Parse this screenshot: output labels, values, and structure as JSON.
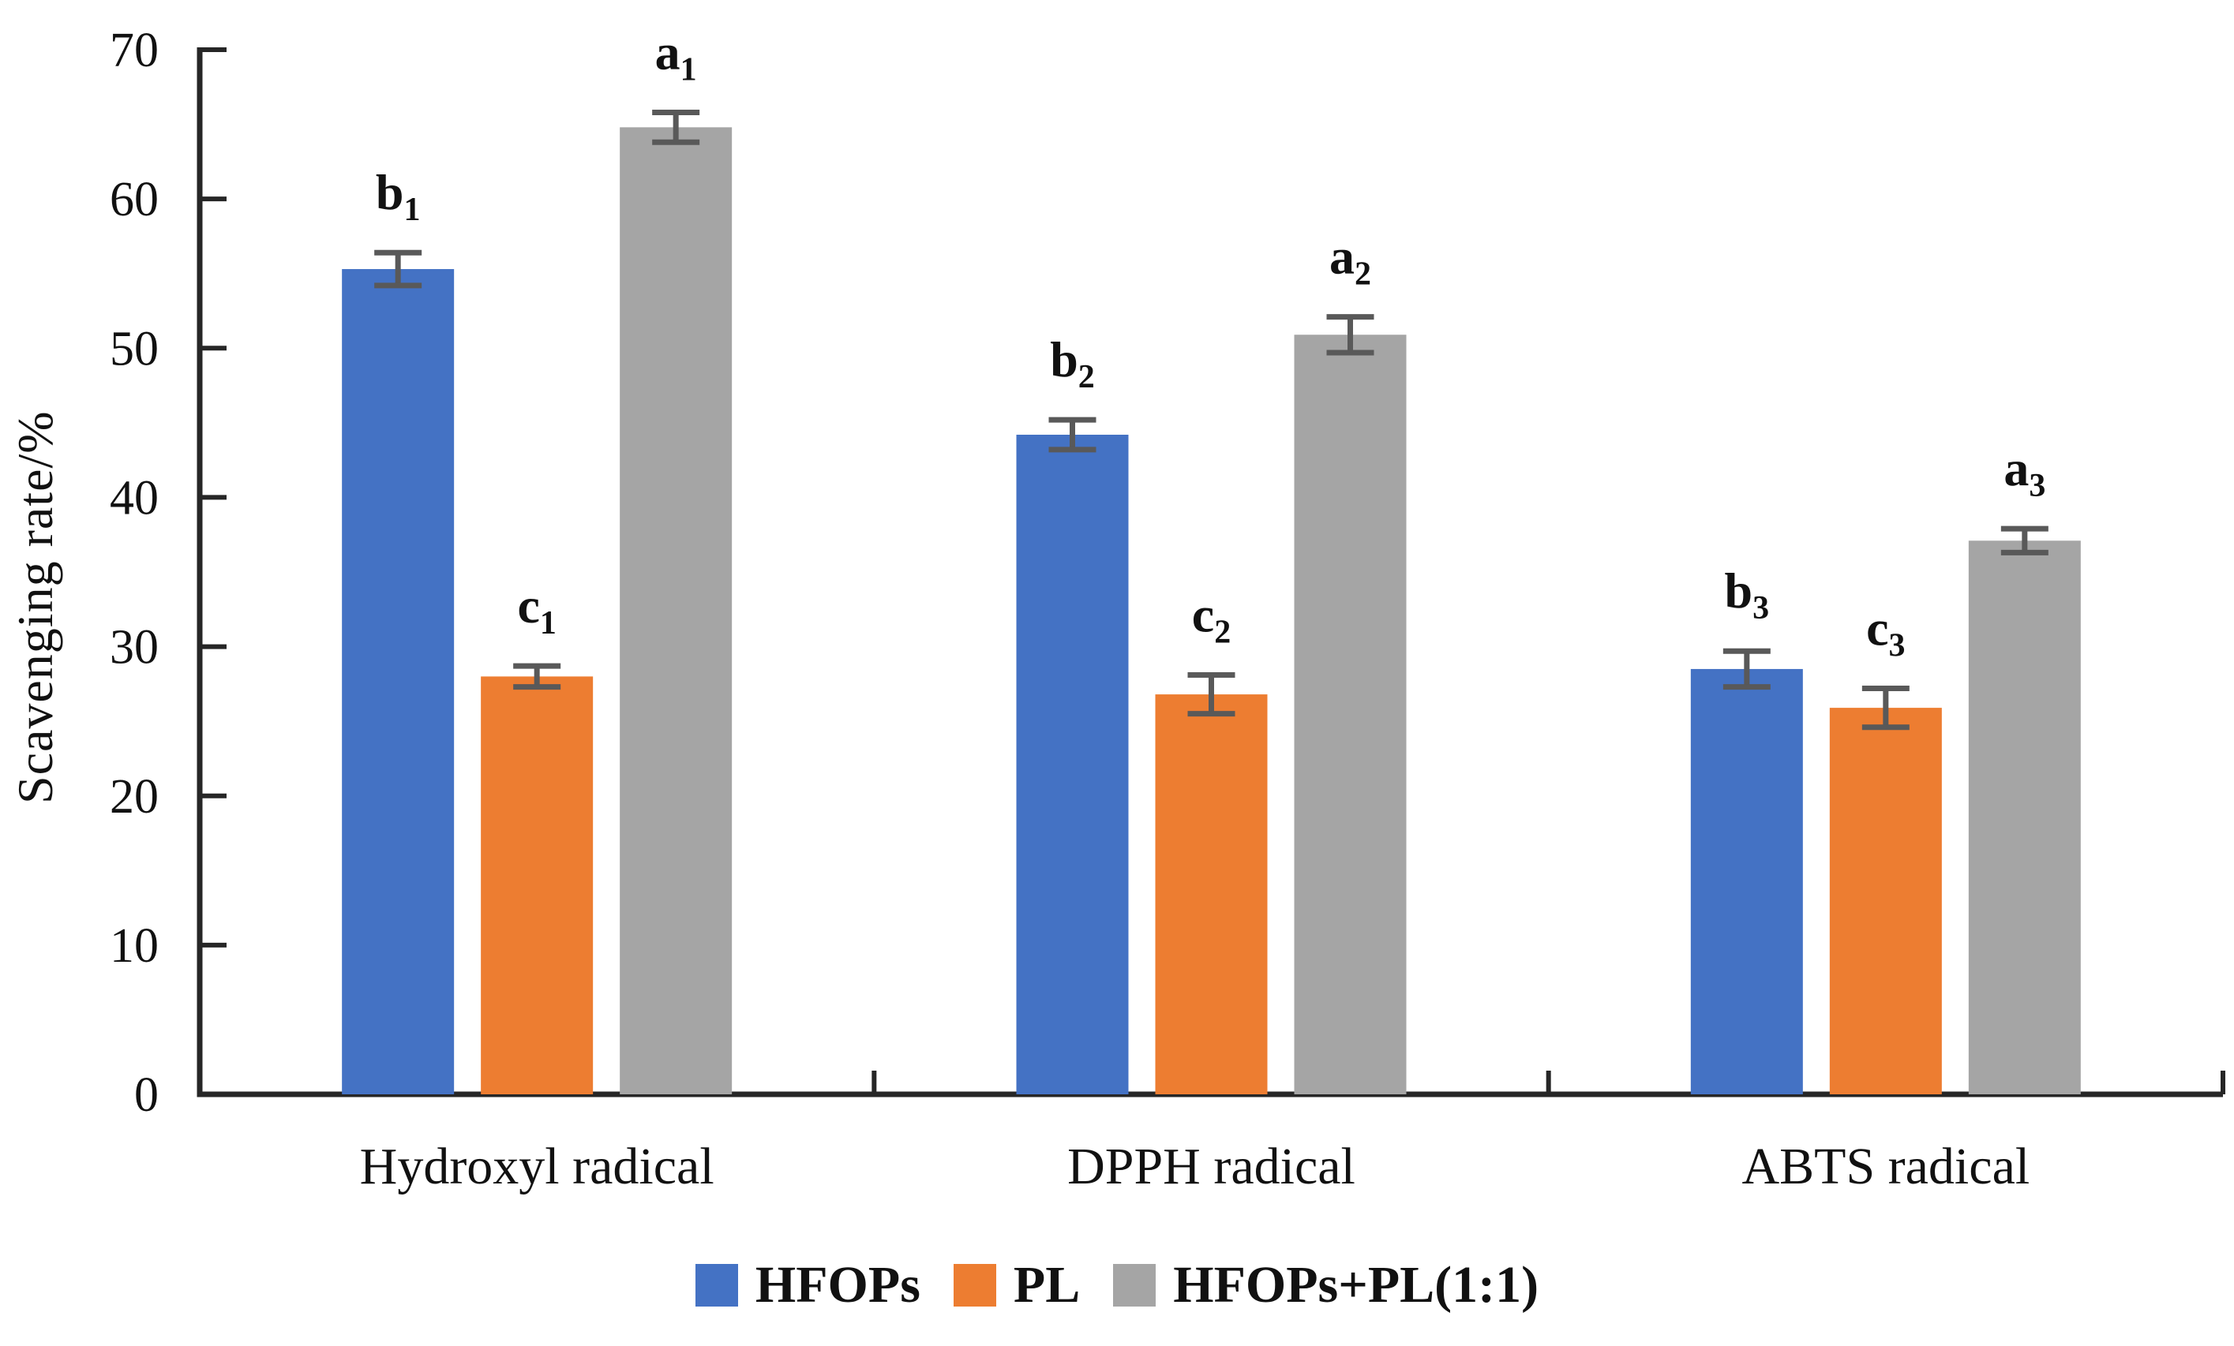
{
  "chart_data": {
    "type": "bar",
    "title": "",
    "ylabel": "Scavenging rate/%",
    "xlabel": "",
    "ylim": [
      0,
      70
    ],
    "yticks": [
      0,
      10,
      20,
      30,
      40,
      50,
      60,
      70
    ],
    "grid": false,
    "legend_position": "bottom",
    "background": "#ffffff",
    "axis_color": "#262626",
    "text_color": "#111111",
    "error_bar_color": "#595959",
    "categories": [
      "Hydroxyl radical",
      "DPPH radical",
      "ABTS radical"
    ],
    "series": [
      {
        "name": "HFOPs",
        "color": "#4472C4",
        "values": [
          55.3,
          44.2,
          28.5
        ],
        "errors": [
          1.1,
          1.0,
          1.2
        ],
        "annotations": [
          {
            "text": "b",
            "sub": "1"
          },
          {
            "text": "b",
            "sub": "2"
          },
          {
            "text": "b",
            "sub": "3"
          }
        ]
      },
      {
        "name": "PL",
        "color": "#ED7D31",
        "values": [
          28.0,
          26.8,
          25.9
        ],
        "errors": [
          0.7,
          1.3,
          1.3
        ],
        "annotations": [
          {
            "text": "c",
            "sub": "1"
          },
          {
            "text": "c",
            "sub": "2"
          },
          {
            "text": "c",
            "sub": "3"
          }
        ]
      },
      {
        "name": "HFOPs+PL(1:1)",
        "color": "#A5A5A5",
        "values": [
          64.8,
          50.9,
          37.1
        ],
        "errors": [
          1.0,
          1.2,
          0.8
        ],
        "annotations": [
          {
            "text": "a",
            "sub": "1"
          },
          {
            "text": "a",
            "sub": "2"
          },
          {
            "text": "a",
            "sub": "3"
          }
        ]
      }
    ]
  }
}
